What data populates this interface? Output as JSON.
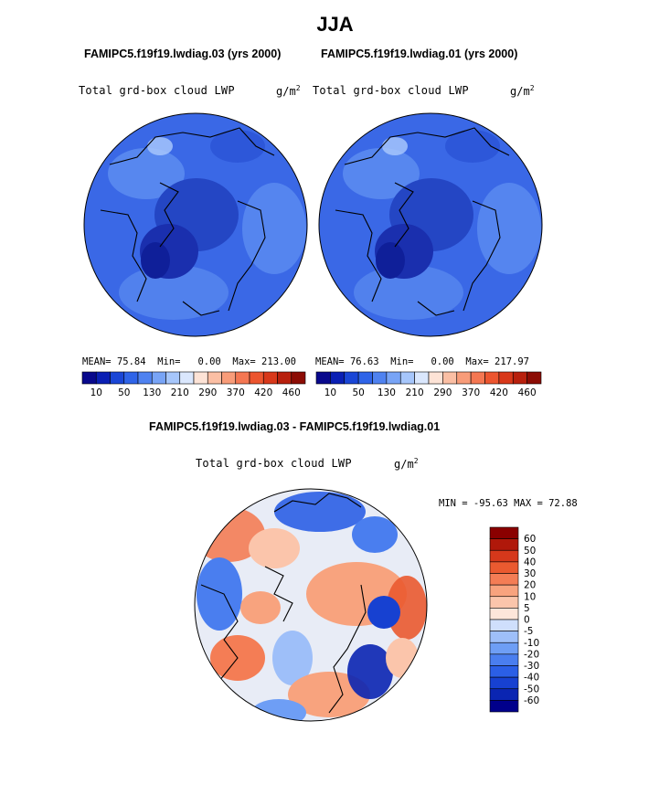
{
  "page_title": "JJA",
  "panels": [
    {
      "case_title": "FAMIPC5.f19f19.lwdiag.03 (yrs 2000)",
      "variable": "Total grd-box cloud LWP",
      "units": "g/m",
      "units_exp": "2",
      "stats": {
        "mean_label": "MEAN=",
        "mean": "75.84",
        "min_label": "Min=",
        "min": "0.00",
        "max_label": "Max=",
        "max": "213.00"
      }
    },
    {
      "case_title": "FAMIPC5.f19f19.lwdiag.01 (yrs 2000)",
      "variable": "Total grd-box cloud LWP",
      "units": "g/m",
      "units_exp": "2",
      "stats": {
        "mean_label": "MEAN=",
        "mean": "76.63",
        "min_label": "Min=",
        "min": "0.00",
        "max_label": "Max=",
        "max": "217.97"
      }
    }
  ],
  "diff_panel": {
    "title": "FAMIPC5.f19f19.lwdiag.03 - FAMIPC5.f19f19.lwdiag.01",
    "variable": "Total grd-box cloud LWP",
    "units": "g/m",
    "units_exp": "2",
    "minmax": "MIN = -95.63 MAX =  72.88"
  },
  "colors": {
    "seq_scale": [
      "#08088c",
      "#0a1fb4",
      "#1a46d6",
      "#2f64e8",
      "#4f82f0",
      "#78a4f6",
      "#a6c6fb",
      "#dae7fd",
      "#fde3d6",
      "#fbbfa4",
      "#f89c79",
      "#f47752",
      "#ec552f",
      "#d8381a",
      "#b8200d",
      "#8c0c04"
    ],
    "diff_scale": [
      "#00008b",
      "#0a25b2",
      "#1741d1",
      "#2b5fe6",
      "#4a7eef",
      "#6e9ef5",
      "#9ebff9",
      "#cfdffc",
      "#fde6da",
      "#fbc5ab",
      "#f8a37e",
      "#f47d55",
      "#ea5a30",
      "#d5381b",
      "#b0180a",
      "#8a0000"
    ],
    "map_fill": "#3a68e6",
    "land_line": "#000000"
  },
  "chart_data": [
    {
      "type": "heatmap",
      "projection": "north polar stereographic",
      "title": "FAMIPC5.f19f19.lwdiag.03 (yrs 2000)",
      "variable": "Total grd-box cloud LWP",
      "units": "g/m2",
      "colorbar_ticks": [
        "10",
        "50",
        "130",
        "210",
        "290",
        "370",
        "420",
        "460"
      ],
      "levels": [
        10,
        30,
        50,
        90,
        130,
        170,
        210,
        250,
        290,
        330,
        370,
        400,
        420,
        440,
        460
      ],
      "mean": 75.84,
      "min": 0.0,
      "max": 213.0
    },
    {
      "type": "heatmap",
      "projection": "north polar stereographic",
      "title": "FAMIPC5.f19f19.lwdiag.01 (yrs 2000)",
      "variable": "Total grd-box cloud LWP",
      "units": "g/m2",
      "colorbar_ticks": [
        "10",
        "50",
        "130",
        "210",
        "290",
        "370",
        "420",
        "460"
      ],
      "levels": [
        10,
        30,
        50,
        90,
        130,
        170,
        210,
        250,
        290,
        330,
        370,
        400,
        420,
        440,
        460
      ],
      "mean": 76.63,
      "min": 0.0,
      "max": 217.97
    },
    {
      "type": "heatmap",
      "projection": "north polar stereographic",
      "title": "FAMIPC5.f19f19.lwdiag.03 - FAMIPC5.f19f19.lwdiag.01",
      "variable": "Total grd-box cloud LWP",
      "units": "g/m2",
      "colorbar_ticks": [
        "60",
        "50",
        "40",
        "30",
        "20",
        "10",
        "5",
        "0",
        "-5",
        "-10",
        "-20",
        "-30",
        "-40",
        "-50",
        "-60"
      ],
      "min": -95.63,
      "max": 72.88
    }
  ]
}
